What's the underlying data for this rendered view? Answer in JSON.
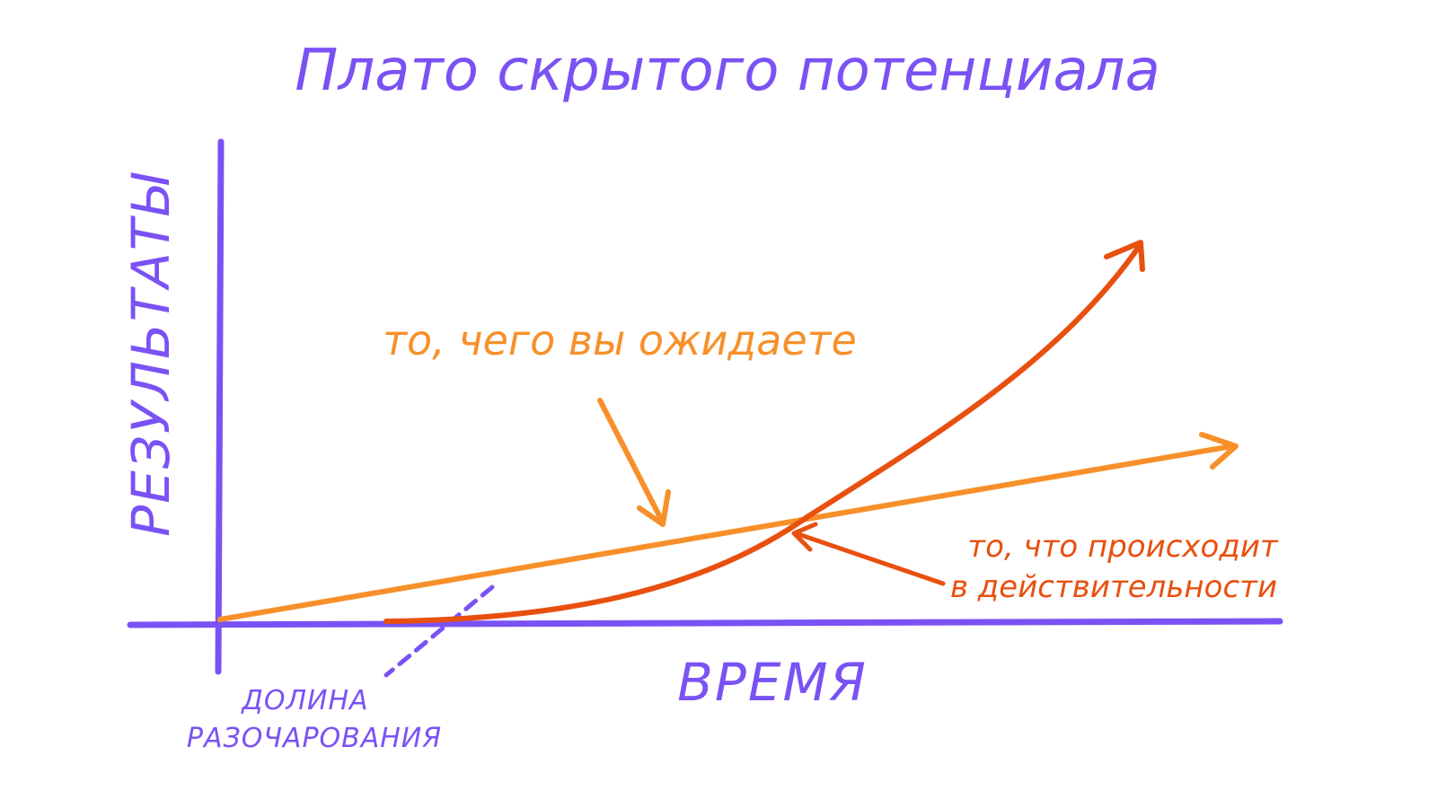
{
  "diagram": {
    "title": "Плато скрытого потенциала",
    "y_axis_label": "РЕЗУЛЬТАТЫ",
    "x_axis_label": "ВРЕМЯ",
    "expected_label": "то, чего вы ожидаете",
    "actual_label_line1": "то, что происходит",
    "actual_label_line2": "в действительности",
    "valley_label_line1": "ДОЛИНА",
    "valley_label_line2": "РАЗОЧАРОВАНИЯ"
  },
  "colors": {
    "axis": "#7a52f4",
    "title": "#7a52f4",
    "expected": "#f7902a",
    "actual": "#e8500f",
    "background": "#ffffff"
  },
  "icons": {
    "expected_arrow": "arrow-head",
    "actual_arrow": "arrow-head",
    "pointer_expected": "arrow",
    "pointer_actual": "arrow"
  }
}
